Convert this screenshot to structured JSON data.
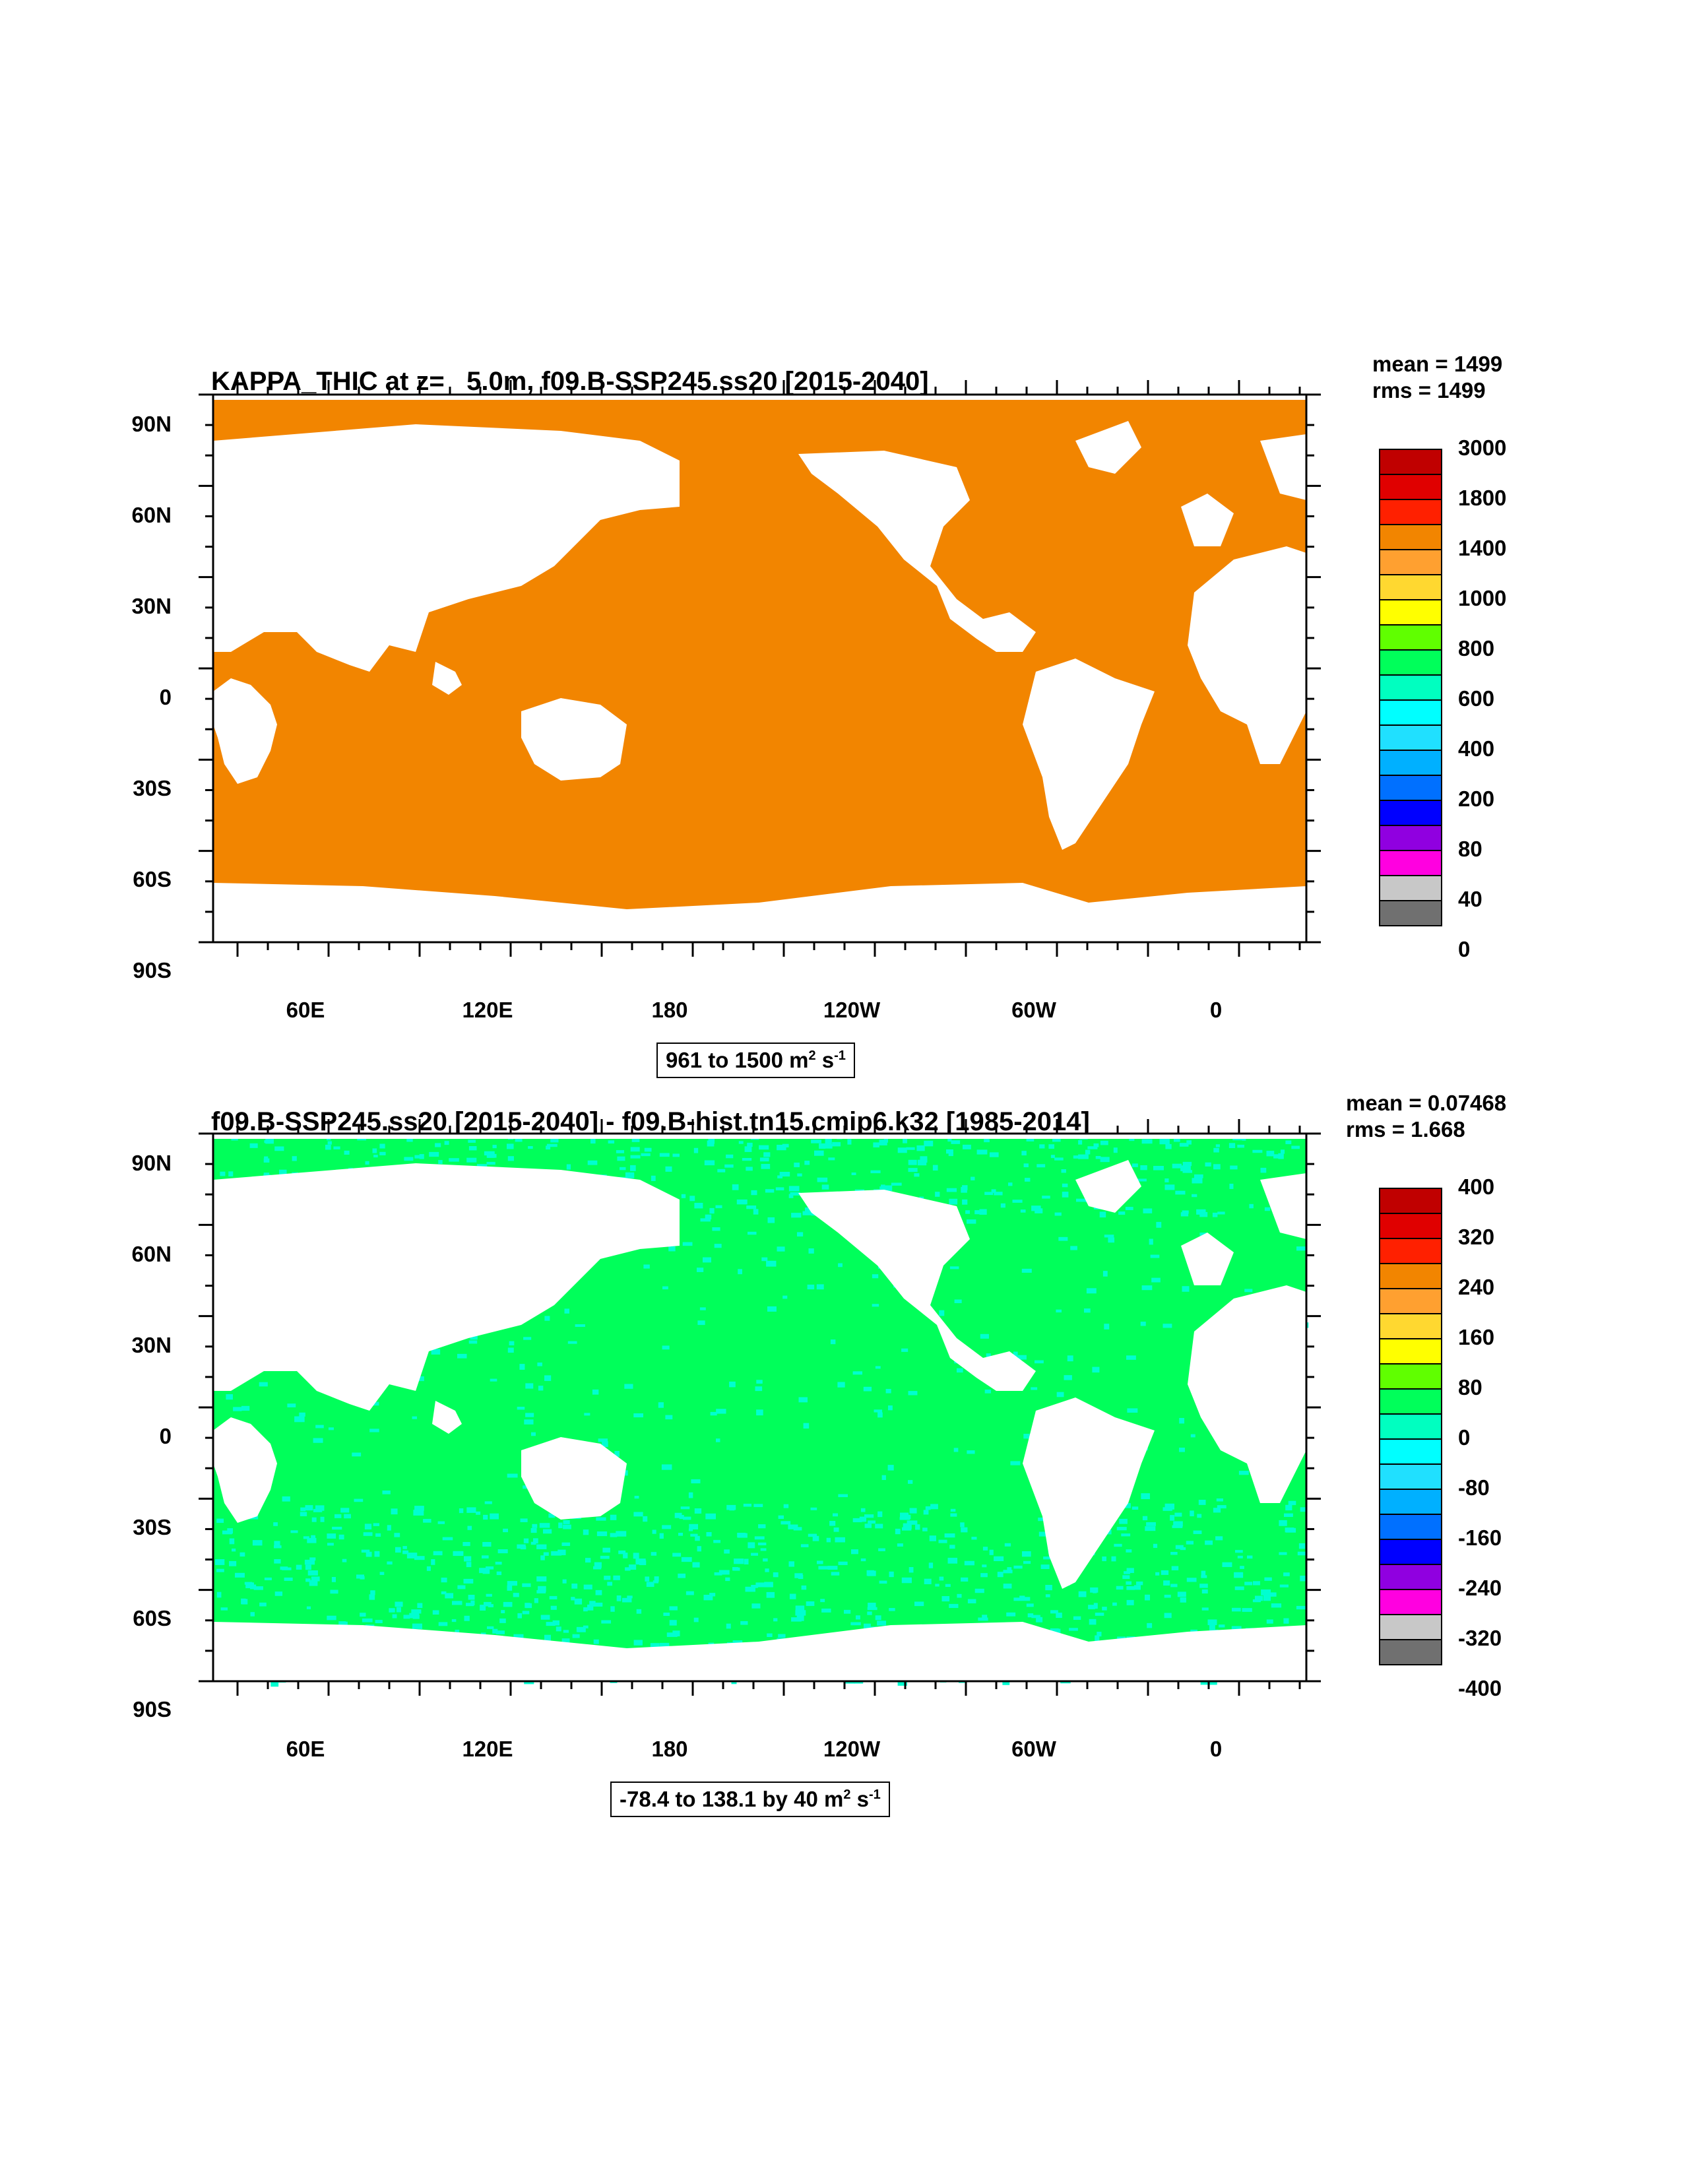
{
  "panels": [
    {
      "title": "KAPPA_THIC at z=   5.0m, f09.B-SSP245.ss20 [2015-2040]",
      "mean": "mean = 1499",
      "rms": "rms = 1499",
      "range_text": "961 to 1500 m",
      "range_units_sup1": "2",
      "range_units_mid": " s",
      "range_units_sup2": "-1",
      "ocean_fill": "#f28500",
      "colorbar_labels": [
        "3000",
        "1800",
        "1400",
        "1000",
        "800",
        "600",
        "400",
        "200",
        "80",
        "40",
        "0"
      ]
    },
    {
      "title": "f09.B-SSP245.ss20 [2015-2040] - f09.B-hist.tn15.cmip6.k32 [1985-2014]",
      "mean": "mean = 0.07468",
      "rms": "rms = 1.668",
      "range_text": "-78.4 to 138.1 by 40 m",
      "range_units_sup1": "2",
      "range_units_mid": " s",
      "range_units_sup2": "-1",
      "ocean_fill": "#00ff5a",
      "speckle_fill": "#00ffd0",
      "colorbar_labels": [
        "400",
        "320",
        "240",
        "160",
        "80",
        "0",
        "-80",
        "-160",
        "-240",
        "-320",
        "-400"
      ]
    }
  ],
  "axes": {
    "lat_labels": [
      "90N",
      "60N",
      "30N",
      "0",
      "30S",
      "60S",
      "90S"
    ],
    "lon_labels": [
      "60E",
      "120E",
      "180",
      "120W",
      "60W",
      "0"
    ]
  },
  "colorbar_colors": [
    "#c00000",
    "#e00000",
    "#ff2000",
    "#f28500",
    "#ffa030",
    "#ffd830",
    "#ffff00",
    "#60ff00",
    "#00ff5a",
    "#00ffc0",
    "#00ffff",
    "#20e0ff",
    "#00b0ff",
    "#0070ff",
    "#0000ff",
    "#9000e0",
    "#ff00e0",
    "#c8c8c8",
    "#707070"
  ]
}
